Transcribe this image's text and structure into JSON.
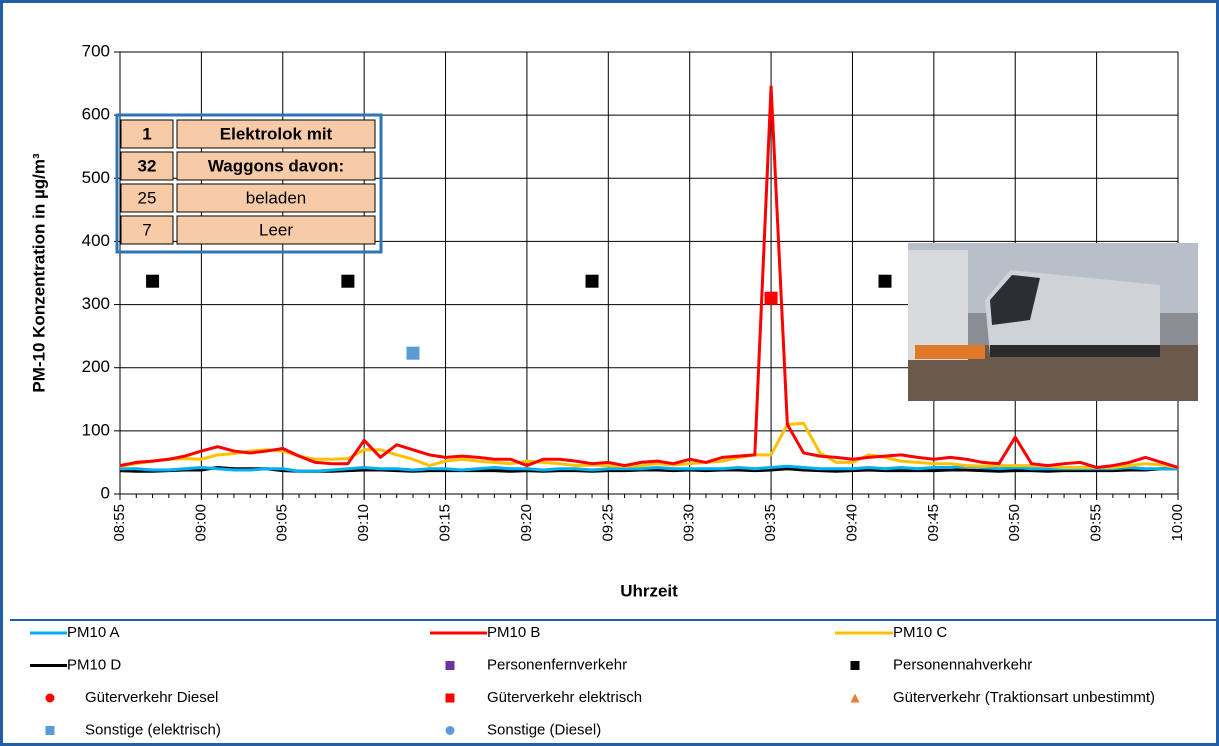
{
  "chart_data": {
    "type": "line",
    "y_label": "PM-10 Konzentration in µg/m³",
    "x_label": "Uhrzeit",
    "ylim": [
      0,
      700
    ],
    "yticks": [
      0,
      100,
      200,
      300,
      400,
      500,
      600,
      700
    ],
    "xlim": [
      "08:55",
      "10:00"
    ],
    "xticks": [
      "08:55",
      "09:00",
      "09:05",
      "09:10",
      "09:15",
      "09:20",
      "09:25",
      "09:30",
      "09:35",
      "09:40",
      "09:45",
      "09:50",
      "09:55",
      "10:00"
    ],
    "grid": true,
    "x": [
      "08:55",
      "08:56",
      "08:57",
      "08:58",
      "08:59",
      "09:00",
      "09:01",
      "09:02",
      "09:03",
      "09:04",
      "09:05",
      "09:06",
      "09:07",
      "09:08",
      "09:09",
      "09:10",
      "09:11",
      "09:12",
      "09:13",
      "09:14",
      "09:15",
      "09:16",
      "09:17",
      "09:18",
      "09:19",
      "09:20",
      "09:21",
      "09:22",
      "09:23",
      "09:24",
      "09:25",
      "09:26",
      "09:27",
      "09:28",
      "09:29",
      "09:30",
      "09:31",
      "09:32",
      "09:33",
      "09:34",
      "09:35",
      "09:36",
      "09:37",
      "09:38",
      "09:39",
      "09:40",
      "09:41",
      "09:42",
      "09:43",
      "09:44",
      "09:45",
      "09:46",
      "09:47",
      "09:48",
      "09:49",
      "09:50",
      "09:51",
      "09:52",
      "09:53",
      "09:54",
      "09:55",
      "09:56",
      "09:57",
      "09:58",
      "09:59",
      "10:00"
    ],
    "series": [
      {
        "name": "PM10 A",
        "color": "#00b0f0",
        "marker": "line",
        "values": [
          40,
          40,
          38,
          38,
          40,
          42,
          40,
          38,
          38,
          40,
          40,
          36,
          36,
          38,
          40,
          42,
          40,
          40,
          38,
          40,
          40,
          38,
          40,
          42,
          40,
          40,
          38,
          40,
          40,
          38,
          40,
          40,
          40,
          42,
          40,
          40,
          40,
          40,
          42,
          40,
          42,
          44,
          42,
          40,
          40,
          40,
          42,
          40,
          42,
          40,
          42,
          42,
          44,
          42,
          40,
          42,
          40,
          40,
          40,
          40,
          40,
          40,
          42,
          40,
          40,
          40
        ]
      },
      {
        "name": "PM10 B",
        "color": "#ff0000",
        "marker": "line",
        "values": [
          45,
          50,
          52,
          55,
          60,
          68,
          75,
          68,
          65,
          68,
          72,
          60,
          50,
          48,
          48,
          85,
          58,
          78,
          70,
          62,
          58,
          60,
          58,
          55,
          55,
          45,
          55,
          55,
          52,
          48,
          50,
          45,
          50,
          52,
          48,
          55,
          50,
          58,
          60,
          62,
          645,
          110,
          65,
          60,
          58,
          55,
          58,
          60,
          62,
          58,
          55,
          58,
          55,
          50,
          48,
          90,
          48,
          45,
          48,
          50,
          42,
          45,
          50,
          58,
          50,
          42
        ]
      },
      {
        "name": "PM10 C",
        "color": "#ffc000",
        "marker": "line",
        "values": [
          44,
          48,
          52,
          55,
          56,
          55,
          62,
          64,
          68,
          70,
          68,
          60,
          55,
          55,
          56,
          70,
          70,
          62,
          55,
          45,
          52,
          55,
          52,
          50,
          48,
          52,
          50,
          48,
          45,
          46,
          45,
          44,
          45,
          48,
          46,
          48,
          50,
          52,
          58,
          62,
          62,
          110,
          112,
          65,
          50,
          50,
          62,
          58,
          52,
          50,
          48,
          48,
          45,
          44,
          45,
          45,
          45,
          44,
          42,
          42,
          42,
          42,
          45,
          48,
          46,
          42
        ]
      },
      {
        "name": "PM10 D",
        "color": "#000000",
        "marker": "line",
        "values": [
          37,
          36,
          36,
          37,
          38,
          38,
          42,
          40,
          40,
          40,
          37,
          36,
          36,
          36,
          37,
          38,
          38,
          37,
          36,
          37,
          37,
          37,
          37,
          37,
          36,
          37,
          36,
          37,
          37,
          36,
          37,
          37,
          38,
          38,
          37,
          38,
          37,
          38,
          38,
          37,
          38,
          40,
          38,
          37,
          36,
          37,
          38,
          37,
          37,
          37,
          37,
          38,
          38,
          37,
          36,
          37,
          37,
          36,
          37,
          37,
          37,
          37,
          38,
          38,
          40,
          40
        ]
      },
      {
        "name": "Personenfernverkehr",
        "color": "#7030a0",
        "marker": "square",
        "x": [],
        "values": []
      },
      {
        "name": "Personennahverkehr",
        "color": "#000000",
        "marker": "square",
        "x": [
          "08:57",
          "09:09",
          "09:24",
          "09:42"
        ],
        "values": [
          337,
          337,
          337,
          337
        ]
      },
      {
        "name": "Güterverkehr Diesel",
        "color": "#ff0000",
        "marker": "circle",
        "x": [],
        "values": []
      },
      {
        "name": "Güterverkehr elektrisch",
        "color": "#ff0000",
        "marker": "square",
        "x": [
          "09:35"
        ],
        "values": [
          310
        ]
      },
      {
        "name": "Güterverkehr (Traktionsart unbestimmt)",
        "color": "#ed7d31",
        "marker": "triangle",
        "x": [],
        "values": []
      },
      {
        "name": "Sonstige (elektrisch)",
        "color": "#5b9bd5",
        "marker": "square",
        "x": [
          "09:13"
        ],
        "values": [
          223
        ]
      },
      {
        "name": "Sonstige (Diesel)",
        "color": "#5b9bd5",
        "marker": "circle",
        "x": [],
        "values": []
      }
    ],
    "info_table": [
      [
        "1",
        "Elektrolok mit"
      ],
      [
        "32",
        "Waggons davon:"
      ],
      [
        "25",
        "beladen"
      ],
      [
        "7",
        "Leer"
      ]
    ]
  }
}
